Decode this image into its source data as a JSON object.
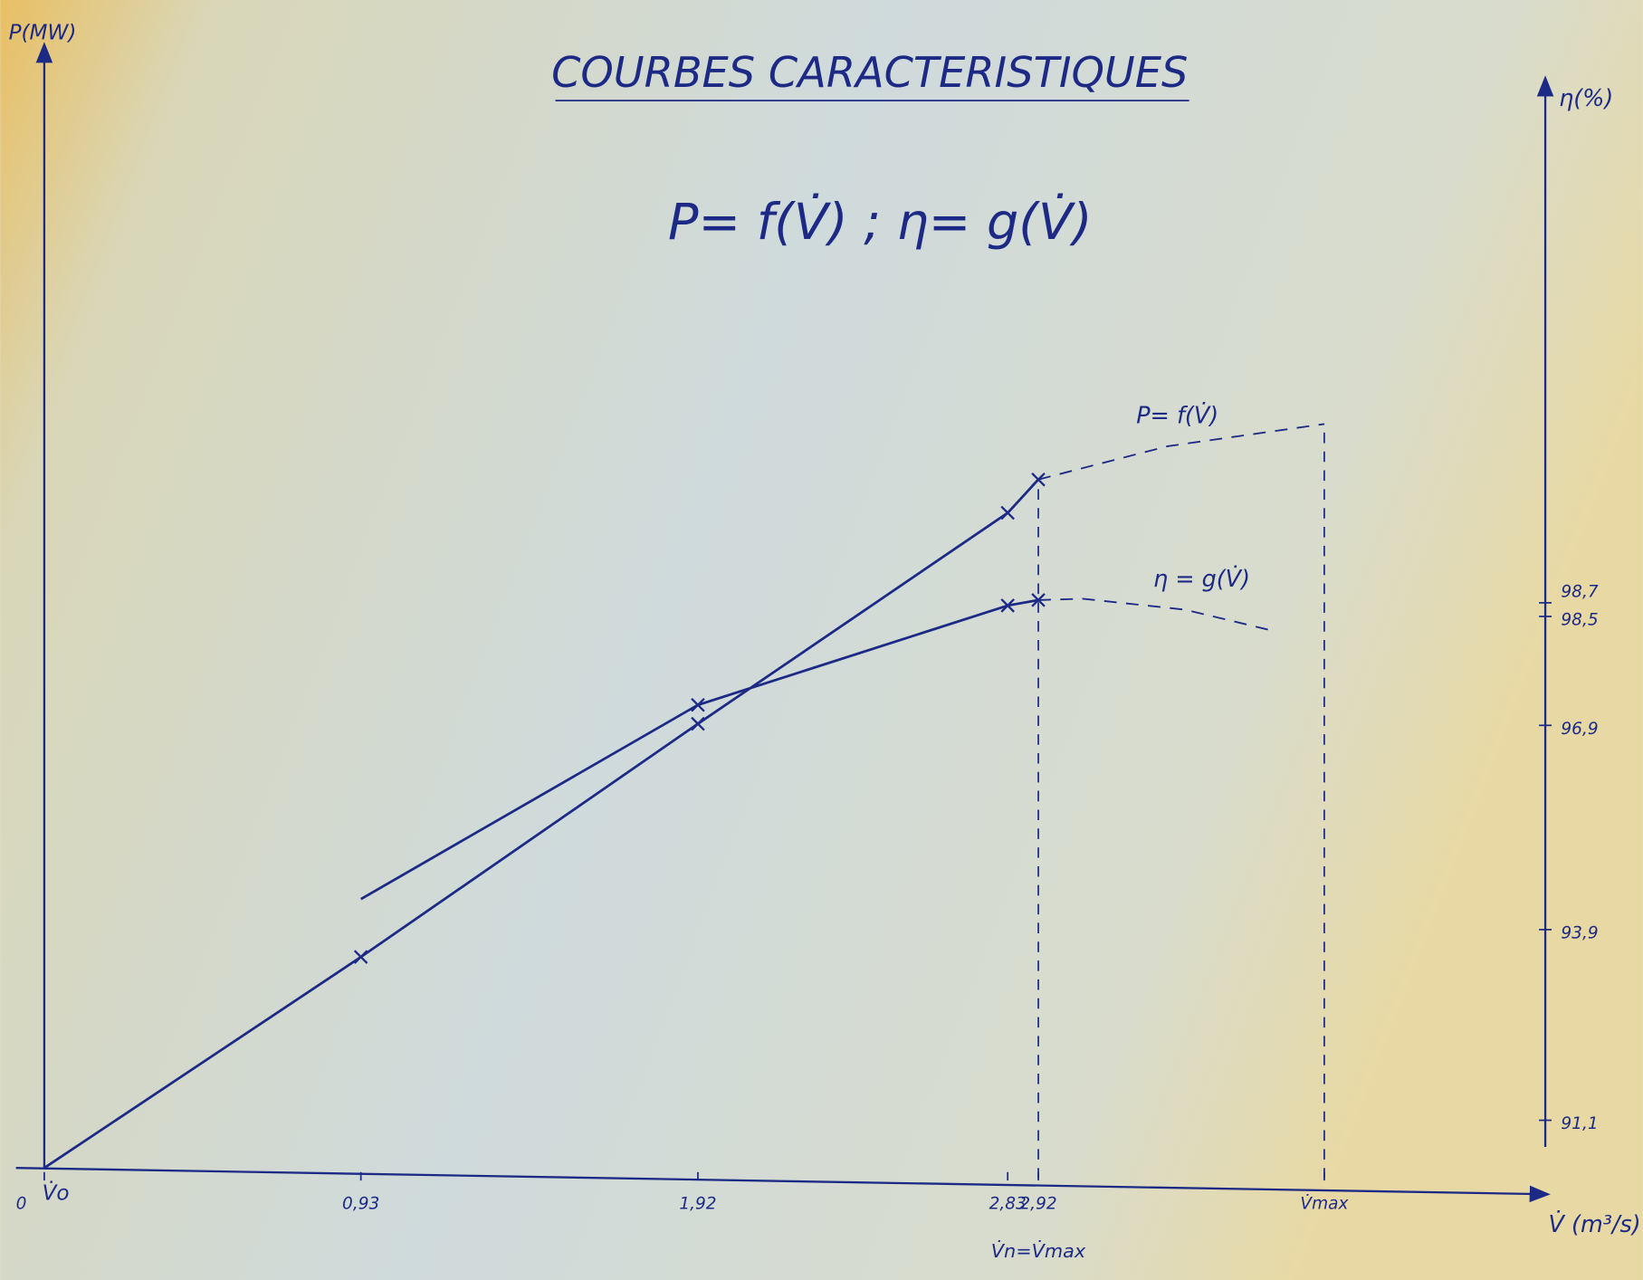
{
  "chart_data": {
    "type": "line",
    "title": "COURBES CARACTERISTIQUES",
    "subtitle": "P= f(V̇) ; η= g(V̇)",
    "ylabel": "P(MW)",
    "y2label": "η(%)",
    "xlabel": "V̇ (m³/s)",
    "origin_label": "V̇o",
    "nominal_label": "V̇n=V̇max",
    "xlim": [
      0,
      4.4
    ],
    "ylim": [
      0,
      1
    ],
    "y2lim": [
      90.4,
      106.2
    ],
    "xticks": [
      0,
      {
        "value": 0.93,
        "label": "0,93"
      },
      {
        "value": 1.92,
        "label": "1,92"
      },
      {
        "value": 2.83,
        "label": "2,83"
      },
      {
        "value": 2.92,
        "label": "2,92"
      },
      {
        "value": 3.76,
        "label": "V̇max"
      }
    ],
    "y2ticks": [
      {
        "value": 91.1,
        "label": "91,1"
      },
      {
        "value": 93.9,
        "label": "93,9"
      },
      {
        "value": 96.9,
        "label": "96,9"
      },
      {
        "value": 98.5,
        "label": "98,5"
      },
      {
        "value": 98.7,
        "label": "98,7"
      }
    ],
    "series": [
      {
        "name": "P= f(V̇)",
        "color": "#1c2a86",
        "x": [
          0,
          0.93,
          1.92,
          2.83,
          2.92,
          3.3,
          3.76
        ],
        "values": [
          0,
          0.19,
          0.4,
          0.59,
          0.62,
          0.65,
          0.67
        ],
        "dashed_from": 4
      },
      {
        "name": "η = g(V̇)",
        "color": "#1c2a86",
        "axis": "y2",
        "x": [
          0.93,
          1.92,
          2.83,
          2.92,
          3.05,
          3.35,
          3.6
        ],
        "values": [
          94.35,
          97.2,
          98.66,
          98.74,
          98.76,
          98.6,
          98.3
        ],
        "dashed_from": 3
      }
    ]
  }
}
